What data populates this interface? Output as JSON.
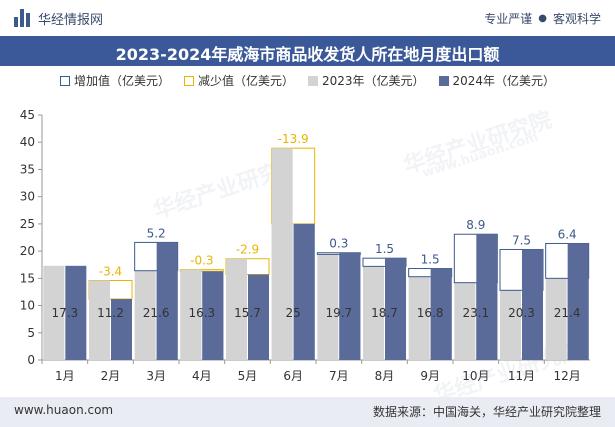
{
  "header": {
    "brand": "华经情报网",
    "slogan_1": "专业严谨",
    "slogan_2": "客观科学",
    "slogan_sep": "●"
  },
  "title": "2023-2024年威海市商品收发货人所在地月度出口额",
  "legend": {
    "increase": "增加值（亿美元）",
    "decrease": "减少值（亿美元）",
    "y2023": "2023年（亿美元）",
    "y2024": "2024年（亿美元）"
  },
  "footer": {
    "site": "www.huaon.com",
    "source": "数据来源：中国海关，华经产业研究院整理"
  },
  "watermark": {
    "text": "华经产业研究院",
    "url": "www.huaon.com"
  },
  "colors": {
    "title_bg": "#3b5998",
    "bar_2023": "#d3d3d3",
    "bar_2024": "#5a6b9a",
    "increase": "#3d5a8c",
    "decrease": "#e8b600",
    "increase_label": "#3d5a8c",
    "decrease_label": "#e8b600"
  },
  "chart_data": {
    "type": "bar",
    "categories": [
      "1月",
      "2月",
      "3月",
      "4月",
      "5月",
      "6月",
      "7月",
      "8月",
      "9月",
      "10月",
      "11月",
      "12月"
    ],
    "series": [
      {
        "name": "2023年（亿美元）",
        "values": [
          17.3,
          14.6,
          16.4,
          16.6,
          18.6,
          38.9,
          19.4,
          17.2,
          15.3,
          14.2,
          12.8,
          15.0
        ]
      },
      {
        "name": "2024年（亿美元）",
        "values": [
          17.3,
          11.2,
          21.6,
          16.3,
          15.7,
          25,
          19.7,
          18.7,
          16.8,
          23.1,
          20.3,
          21.4
        ]
      }
    ],
    "data_labels_2024": [
      "17.3",
      "11.2",
      "21.6",
      "16.3",
      "15.7",
      "25",
      "19.7",
      "18.7",
      "16.8",
      "23.1",
      "20.3",
      "21.4"
    ],
    "change": [
      null,
      -3.4,
      5.2,
      -0.3,
      -2.9,
      -13.9,
      0.3,
      1.5,
      1.5,
      8.9,
      7.5,
      6.4
    ],
    "change_labels": [
      "",
      "-3.4",
      "5.2",
      "-0.3",
      "-2.9",
      "-13.9",
      "0.3",
      "1.5",
      "1.5",
      "8.9",
      "7.5",
      "6.4"
    ],
    "ylim": [
      0,
      45
    ],
    "yticks": [
      "0",
      "5",
      "10",
      "15",
      "20",
      "25",
      "30",
      "35",
      "40",
      "45"
    ],
    "grid": false,
    "legend_position": "top"
  }
}
